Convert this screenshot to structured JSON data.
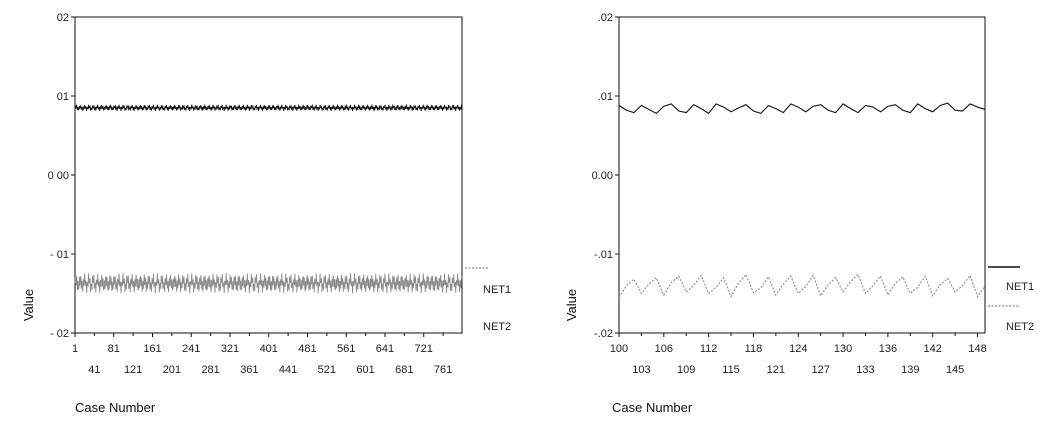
{
  "chart_data": [
    {
      "type": "line",
      "xlabel": "Case Number",
      "ylabel": "Value",
      "ylim": [
        -0.02,
        0.02
      ],
      "yticks": [
        0.02,
        0.01,
        0.0,
        -0.01,
        -0.02
      ],
      "ytick_labels": [
        "02",
        "01",
        "0 00",
        "- 01",
        "- 02"
      ],
      "xlim": [
        1,
        800
      ],
      "xticks_row1": [
        1,
        81,
        161,
        241,
        321,
        401,
        481,
        561,
        641,
        721
      ],
      "xticks_row1_labels": [
        "1",
        "81",
        "161",
        "241",
        "321",
        "401",
        "481",
        "561",
        "641",
        "721"
      ],
      "xticks_row2": [
        41,
        121,
        201,
        281,
        361,
        441,
        521,
        601,
        681,
        761
      ],
      "xticks_row2_labels": [
        "41",
        "121",
        "201",
        "281",
        "361",
        "441",
        "521",
        "601",
        "681",
        "761"
      ],
      "series": [
        {
          "name": "NET1",
          "color": "#111111",
          "center": 0.0085,
          "amplitude": 0.0004
        },
        {
          "name": "NET2",
          "color": "#8c8c8c",
          "center": -0.0137,
          "amplitude": 0.0013
        }
      ],
      "legend_position": "right",
      "grid": false
    },
    {
      "type": "line",
      "xlabel": "Case Number",
      "ylabel": "Value",
      "ylim": [
        -0.02,
        0.02
      ],
      "yticks": [
        0.02,
        0.01,
        0.0,
        -0.01,
        -0.02
      ],
      "ytick_labels": [
        ".02",
        ".01",
        "0.00",
        "-.01",
        "-.02"
      ],
      "xlim": [
        100,
        149
      ],
      "xticks_row1": [
        100,
        106,
        112,
        118,
        124,
        130,
        136,
        142,
        148
      ],
      "xticks_row1_labels": [
        "100",
        "106",
        "112",
        "118",
        "124",
        "130",
        "136",
        "142",
        "148"
      ],
      "xticks_row2": [
        103,
        109,
        115,
        121,
        127,
        133,
        139,
        145
      ],
      "xticks_row2_labels": [
        "103",
        "109",
        "115",
        "121",
        "127",
        "133",
        "139",
        "145"
      ],
      "series": [
        {
          "name": "NET1",
          "color": "#111111",
          "x": [
            100,
            101,
            102,
            103,
            104,
            105,
            106,
            107,
            108,
            109,
            110,
            111,
            112,
            113,
            114,
            115,
            116,
            117,
            118,
            119,
            120,
            121,
            122,
            123,
            124,
            125,
            126,
            127,
            128,
            129,
            130,
            131,
            132,
            133,
            134,
            135,
            136,
            137,
            138,
            139,
            140,
            141,
            142,
            143,
            144,
            145,
            146,
            147,
            148,
            149
          ],
          "values": [
            0.0088,
            0.0082,
            0.0079,
            0.0088,
            0.0083,
            0.0078,
            0.0087,
            0.009,
            0.0081,
            0.0079,
            0.0089,
            0.0084,
            0.0078,
            0.009,
            0.0086,
            0.008,
            0.0085,
            0.0089,
            0.0081,
            0.0078,
            0.0088,
            0.0084,
            0.0079,
            0.009,
            0.0086,
            0.008,
            0.0087,
            0.0089,
            0.0082,
            0.0079,
            0.009,
            0.0084,
            0.0079,
            0.0088,
            0.0086,
            0.008,
            0.0087,
            0.0089,
            0.0082,
            0.0079,
            0.009,
            0.0084,
            0.008,
            0.0088,
            0.0091,
            0.0082,
            0.0081,
            0.009,
            0.0086,
            0.0083
          ]
        },
        {
          "name": "NET2",
          "color": "#8c8c8c",
          "x": [
            100,
            101,
            102,
            103,
            104,
            105,
            106,
            107,
            108,
            109,
            110,
            111,
            112,
            113,
            114,
            115,
            116,
            117,
            118,
            119,
            120,
            121,
            122,
            123,
            124,
            125,
            126,
            127,
            128,
            129,
            130,
            131,
            132,
            133,
            134,
            135,
            136,
            137,
            138,
            139,
            140,
            141,
            142,
            143,
            144,
            145,
            146,
            147,
            148,
            149
          ],
          "values": [
            -0.0155,
            -0.014,
            -0.0132,
            -0.015,
            -0.0138,
            -0.013,
            -0.0152,
            -0.0136,
            -0.0128,
            -0.0148,
            -0.014,
            -0.0127,
            -0.015,
            -0.0142,
            -0.013,
            -0.0154,
            -0.0137,
            -0.0126,
            -0.0149,
            -0.0143,
            -0.0129,
            -0.0152,
            -0.0138,
            -0.0128,
            -0.015,
            -0.0141,
            -0.0127,
            -0.0153,
            -0.0139,
            -0.013,
            -0.0148,
            -0.0135,
            -0.0126,
            -0.015,
            -0.014,
            -0.0128,
            -0.0152,
            -0.0137,
            -0.0129,
            -0.015,
            -0.0142,
            -0.0128,
            -0.0153,
            -0.0139,
            -0.0131,
            -0.0148,
            -0.014,
            -0.0127,
            -0.0154,
            -0.0141
          ]
        }
      ],
      "legend_position": "right",
      "grid": false
    }
  ]
}
